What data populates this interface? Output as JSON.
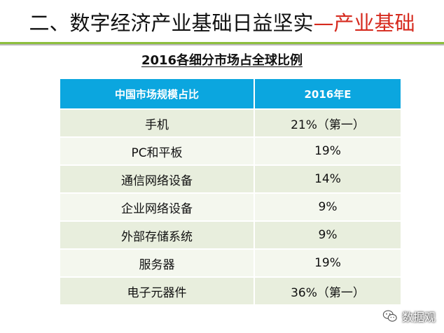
{
  "slide": {
    "title_prefix": "二、数字经济产业基础日益坚实",
    "title_accent": "—产业基础"
  },
  "table": {
    "title": "2016各细分市场占全球比例",
    "headers": [
      "中国市场规模占比",
      "2016年E"
    ],
    "rows": [
      {
        "segment": "手机",
        "share": "21%（第一）"
      },
      {
        "segment": "PC和平板",
        "share": "19%"
      },
      {
        "segment": "通信网络设备",
        "share": "14%"
      },
      {
        "segment": "企业网络设备",
        "share": "9%"
      },
      {
        "segment": "外部存储系统",
        "share": "9%"
      },
      {
        "segment": "服务器",
        "share": "19%"
      },
      {
        "segment": "电子元器件",
        "share": "36%（第一）"
      }
    ]
  },
  "watermark": {
    "icon": "wechat-icon",
    "text": "数据观"
  },
  "colors": {
    "accent_red": "#d62a1e",
    "header_blue": "#0ba6df",
    "rule_green": "#8dbf3d"
  }
}
